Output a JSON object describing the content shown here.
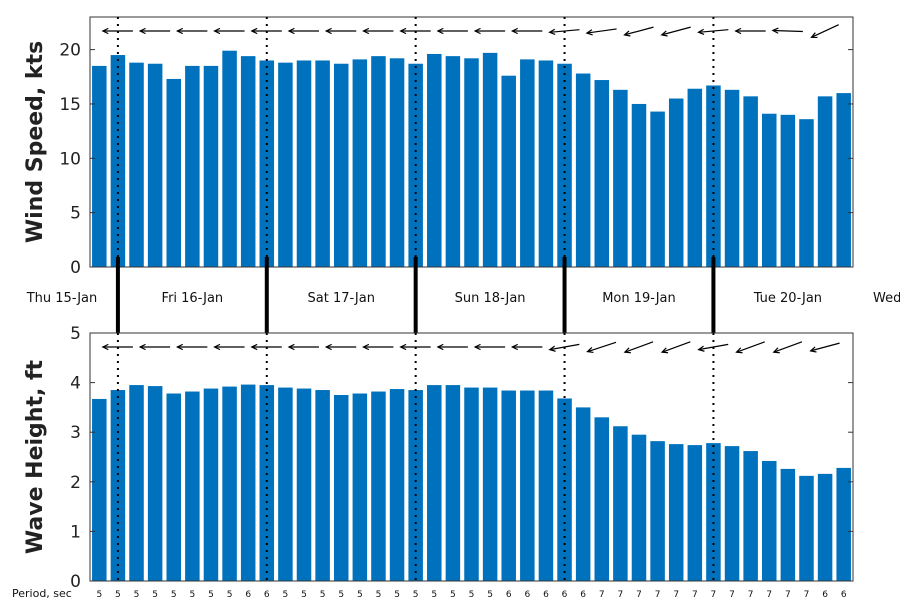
{
  "chart_data": [
    {
      "type": "bar",
      "ylabel": "Wind Speed, kts",
      "ylim": [
        0,
        23
      ],
      "yticks": [
        0,
        5,
        10,
        15,
        20
      ],
      "bar_color": "#0072BD",
      "values": [
        18.5,
        19.5,
        18.8,
        18.7,
        17.3,
        18.5,
        18.5,
        19.9,
        19.4,
        19.0,
        18.8,
        19.0,
        19.0,
        18.7,
        19.1,
        19.4,
        19.2,
        18.7,
        19.6,
        19.4,
        19.2,
        19.7,
        17.6,
        19.1,
        19.0,
        18.7,
        17.8,
        17.2,
        16.3,
        15.0,
        14.3,
        15.5,
        16.4,
        16.7,
        16.3,
        15.7,
        14.1,
        14.0,
        13.6,
        15.7,
        16.0
      ],
      "direction_arrows": "wind direction arrow above each bar, mostly pointing left (from the east)"
    },
    {
      "type": "bar",
      "ylabel": "Wave Height, ft",
      "ylim": [
        0,
        5
      ],
      "yticks": [
        0,
        1,
        2,
        3,
        4,
        5
      ],
      "bar_color": "#0072BD",
      "values": [
        3.67,
        3.85,
        3.95,
        3.93,
        3.78,
        3.82,
        3.88,
        3.92,
        3.96,
        3.95,
        3.9,
        3.88,
        3.85,
        3.75,
        3.78,
        3.82,
        3.87,
        3.85,
        3.95,
        3.95,
        3.9,
        3.9,
        3.84,
        3.84,
        3.84,
        3.68,
        3.5,
        3.3,
        3.12,
        2.95,
        2.82,
        2.76,
        2.74,
        2.78,
        2.72,
        2.62,
        2.42,
        2.26,
        2.12,
        2.16,
        2.28
      ],
      "direction_arrows": "wave direction arrow above each bar, mostly pointing left",
      "period_label": "Period, sec",
      "periods": [
        "5",
        "5",
        "5",
        "5",
        "5",
        "5",
        "5",
        "5",
        "6",
        "6",
        "5",
        "5",
        "5",
        "5",
        "5",
        "5",
        "5",
        "5",
        "5",
        "5",
        "5",
        "5",
        "6",
        "6",
        "6",
        "6",
        "6",
        "7",
        "7",
        "7",
        "7",
        "7",
        "7",
        "7",
        "7",
        "7",
        "7",
        "7",
        "7",
        "6",
        "6"
      ]
    }
  ],
  "days": [
    "Thu 15-Jan",
    "Fri 16-Jan",
    "Sat 17-Jan",
    "Sun 18-Jan",
    "Mon 19-Jan",
    "Tue 20-Jan",
    "Wed"
  ],
  "wind_dir_deg": [
    180,
    180,
    180,
    180,
    180,
    180,
    180,
    180,
    180,
    180,
    180,
    180,
    180,
    180,
    180,
    180,
    180,
    180,
    180,
    180,
    180,
    180,
    180,
    180,
    180,
    185,
    185,
    188,
    190,
    195,
    198,
    195,
    190,
    185,
    180,
    180,
    175,
    178,
    200,
    205,
    210
  ],
  "wave_dir_deg": [
    180,
    180,
    180,
    180,
    180,
    180,
    180,
    180,
    180,
    180,
    180,
    180,
    180,
    180,
    180,
    180,
    180,
    180,
    180,
    180,
    180,
    180,
    180,
    180,
    180,
    190,
    195,
    198,
    200,
    200,
    200,
    200,
    195,
    190,
    200,
    200,
    200,
    200,
    195,
    195,
    195
  ]
}
